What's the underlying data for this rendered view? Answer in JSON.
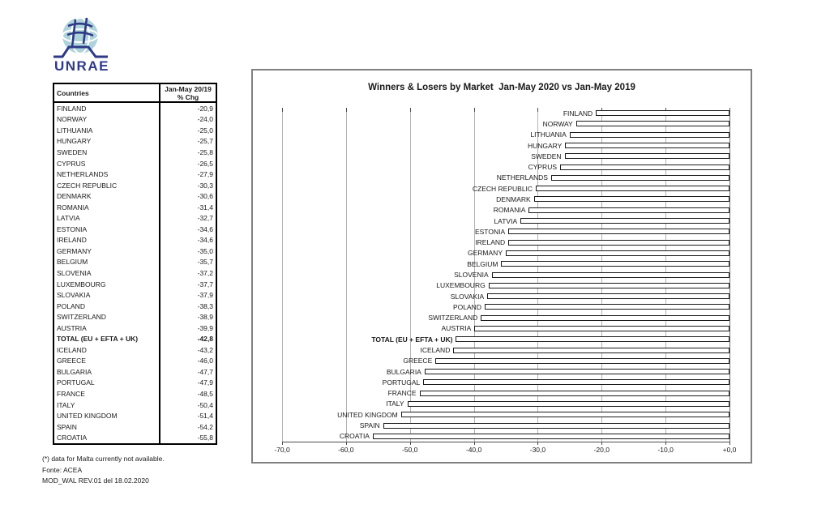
{
  "logo": {
    "brand": "UNRAE",
    "globe_color": "#aed3da",
    "accent_color": "#2e3a87"
  },
  "table": {
    "header": {
      "col_countries": "Countries",
      "col_change_line1": "Jan-May 20/19",
      "col_change_line2": "% Chg"
    },
    "rows": [
      {
        "country": "FINLAND",
        "value": "-20,9",
        "bold": false
      },
      {
        "country": "NORWAY",
        "value": "-24,0",
        "bold": false
      },
      {
        "country": "LITHUANIA",
        "value": "-25,0",
        "bold": false
      },
      {
        "country": "HUNGARY",
        "value": "-25,7",
        "bold": false
      },
      {
        "country": "SWEDEN",
        "value": "-25,8",
        "bold": false
      },
      {
        "country": "CYPRUS",
        "value": "-26,5",
        "bold": false
      },
      {
        "country": "NETHERLANDS",
        "value": "-27,9",
        "bold": false
      },
      {
        "country": "CZECH REPUBLIC",
        "value": "-30,3",
        "bold": false
      },
      {
        "country": "DENMARK",
        "value": "-30,6",
        "bold": false
      },
      {
        "country": "ROMANIA",
        "value": "-31,4",
        "bold": false
      },
      {
        "country": "LATVIA",
        "value": "-32,7",
        "bold": false
      },
      {
        "country": "ESTONIA",
        "value": "-34,6",
        "bold": false
      },
      {
        "country": "IRELAND",
        "value": "-34,6",
        "bold": false
      },
      {
        "country": "GERMANY",
        "value": "-35,0",
        "bold": false
      },
      {
        "country": "BELGIUM",
        "value": "-35,7",
        "bold": false
      },
      {
        "country": "SLOVENIA",
        "value": "-37,2",
        "bold": false
      },
      {
        "country": "LUXEMBOURG",
        "value": "-37,7",
        "bold": false
      },
      {
        "country": "SLOVAKIA",
        "value": "-37,9",
        "bold": false
      },
      {
        "country": "POLAND",
        "value": "-38,3",
        "bold": false
      },
      {
        "country": "SWITZERLAND",
        "value": "-38,9",
        "bold": false
      },
      {
        "country": "AUSTRIA",
        "value": "-39,9",
        "bold": false
      },
      {
        "country": "TOTAL (EU + EFTA + UK)",
        "value": "-42,8",
        "bold": true
      },
      {
        "country": "ICELAND",
        "value": "-43,2",
        "bold": false
      },
      {
        "country": "GREECE",
        "value": "-46,0",
        "bold": false
      },
      {
        "country": "BULGARIA",
        "value": "-47,7",
        "bold": false
      },
      {
        "country": "PORTUGAL",
        "value": "-47,9",
        "bold": false
      },
      {
        "country": "FRANCE",
        "value": "-48,5",
        "bold": false
      },
      {
        "country": "ITALY",
        "value": "-50,4",
        "bold": false
      },
      {
        "country": "UNITED KINGDOM",
        "value": "-51,4",
        "bold": false
      },
      {
        "country": "SPAIN",
        "value": "-54,2",
        "bold": false
      },
      {
        "country": "CROATIA",
        "value": "-55,8",
        "bold": false
      }
    ]
  },
  "footnotes": {
    "line1": "(*) data for Malta currently not available.",
    "line2": "Fonte: ACEA",
    "line3": "MOD_WAL REV.01 del 18.02.2020"
  },
  "chart": {
    "title": "Winners & Losers by Market  Jan-May 2020 vs Jan-May 2019",
    "x_tick_labels": [
      "-70,0",
      "-60,0",
      "-50,0",
      "-40,0",
      "-30,0",
      "-20,0",
      "-10,0",
      "+0,0"
    ]
  },
  "chart_data": {
    "type": "bar",
    "orientation": "horizontal",
    "title": "Winners & Losers by Market  Jan-May 2020 vs Jan-May 2019",
    "categories": [
      "FINLAND",
      "NORWAY",
      "LITHUANIA",
      "HUNGARY",
      "SWEDEN",
      "CYPRUS",
      "NETHERLANDS",
      "CZECH REPUBLIC",
      "DENMARK",
      "ROMANIA",
      "LATVIA",
      "ESTONIA",
      "IRELAND",
      "GERMANY",
      "BELGIUM",
      "SLOVENIA",
      "LUXEMBOURG",
      "SLOVAKIA",
      "POLAND",
      "SWITZERLAND",
      "AUSTRIA",
      "TOTAL (EU + EFTA + UK)",
      "ICELAND",
      "GREECE",
      "BULGARIA",
      "PORTUGAL",
      "FRANCE",
      "ITALY",
      "UNITED KINGDOM",
      "SPAIN",
      "CROATIA"
    ],
    "values": [
      -20.9,
      -24.0,
      -25.0,
      -25.7,
      -25.8,
      -26.5,
      -27.9,
      -30.3,
      -30.6,
      -31.4,
      -32.7,
      -34.6,
      -34.6,
      -35.0,
      -35.7,
      -37.2,
      -37.7,
      -37.9,
      -38.3,
      -38.9,
      -39.9,
      -42.8,
      -43.2,
      -46.0,
      -47.7,
      -47.9,
      -48.5,
      -50.4,
      -51.4,
      -54.2,
      -55.8
    ],
    "highlighted_category": "TOTAL (EU + EFTA + UK)",
    "xlabel": "",
    "ylabel": "",
    "xlim": [
      -70,
      0
    ],
    "x_ticks": [
      -70,
      -60,
      -50,
      -40,
      -30,
      -20,
      -10,
      0
    ],
    "grid": true,
    "legend": false,
    "bar_fill": "#ffffff",
    "bar_border": "#1a1a1a"
  }
}
